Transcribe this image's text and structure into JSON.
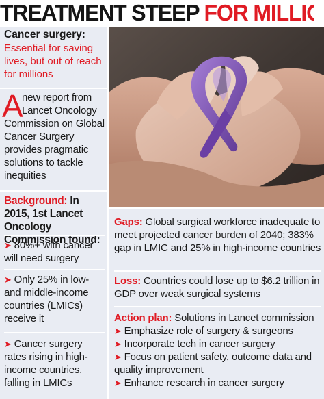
{
  "header": {
    "title_black": "TREATMENT STEEP",
    "title_red": "FOR MILLIONS"
  },
  "intro": {
    "title": "Cancer surgery:",
    "subtitle": "Essential for saving lives, but out of reach for millions"
  },
  "lead": {
    "drop_cap": "A",
    "line1": "new report from",
    "line2": "Lancet Oncology",
    "rest": "Commission on Global Cancer Surgery provides pragmatic solutions to tackle inequities"
  },
  "background": {
    "label": "Background:",
    "text": "In 2015, 1st Lancet Oncology Commission found:",
    "bullets": [
      "80%+ with cancer will need surgery",
      "Only 25% in low- and middle-income countries (LMICs) receive it",
      "Cancer surgery rates rising in high-income countries, falling in LMICs"
    ]
  },
  "gaps": {
    "label": "Gaps:",
    "text": "Global surgical workforce inadequate to meet projected cancer burden of 2040; 383% gap in LMIC and 25% in high-income countries"
  },
  "loss": {
    "label": "Loss:",
    "text": "Countries could lose up to $6.2 trillion in GDP over weak surgical systems"
  },
  "action_plan": {
    "label": "Action plan:",
    "text": "Solutions in Lancet commission",
    "bullets": [
      "Emphasize role of surgery & surgeons",
      "Incorporate tech in cancer surgery",
      "Focus on patient safety, outcome data and quality improvement",
      "Enhance research in cancer surgery"
    ]
  },
  "colors": {
    "accent_red": "#e01b24",
    "panel_bg": "#e9ecf3",
    "ribbon_purple": "#7b4fb3"
  },
  "icons": {
    "bullet": "arrow-right-icon"
  }
}
